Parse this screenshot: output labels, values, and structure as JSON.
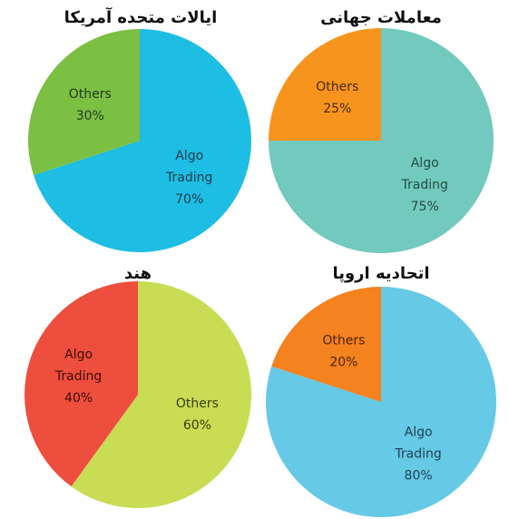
{
  "chart_data": [
    {
      "type": "pie",
      "title": "ایالات متحده آمریکا",
      "slices": [
        {
          "label": "Algo Trading",
          "value": 70,
          "value_label": "70%",
          "color": "#1ebde3",
          "text_color": "#1f3b4d"
        },
        {
          "label": "Others",
          "value": 30,
          "value_label": "30%",
          "color": "#7bbf43",
          "text_color": "#1f3b1a"
        }
      ]
    },
    {
      "type": "pie",
      "title": "معاملات جهانی",
      "slices": [
        {
          "label": "Algo Trading",
          "value": 75,
          "value_label": "75%",
          "color": "#72c9bd",
          "text_color": "#1f4d45"
        },
        {
          "label": "Others",
          "value": 25,
          "value_label": "25%",
          "color": "#f7941d",
          "text_color": "#4a2a05"
        }
      ]
    },
    {
      "type": "pie",
      "title": "هند",
      "slices": [
        {
          "label": "Others",
          "value": 60,
          "value_label": "60%",
          "color": "#c8dc54",
          "text_color": "#3a3f10"
        },
        {
          "label": "Algo Trading",
          "value": 40,
          "value_label": "40%",
          "color": "#ee4e3d",
          "text_color": "#3a0e08"
        }
      ]
    },
    {
      "type": "pie",
      "title": "اتحادیه اروپا",
      "slices": [
        {
          "label": "Algo Trading",
          "value": 80,
          "value_label": "80%",
          "color": "#66c9e6",
          "text_color": "#1f3f52"
        },
        {
          "label": "Others",
          "value": 20,
          "value_label": "20%",
          "color": "#f4821f",
          "text_color": "#4a2405"
        }
      ]
    }
  ]
}
